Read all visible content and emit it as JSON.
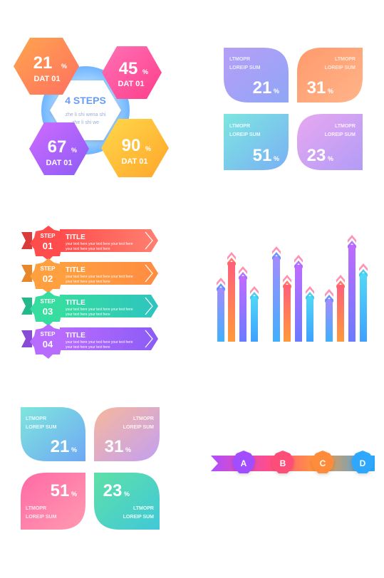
{
  "hex_steps": {
    "center_title": "4 STEPS",
    "center_line1": "zhe li shi wena shi",
    "center_line2": "zhe li shi we",
    "items": [
      {
        "value": "21",
        "unit": "%",
        "label": "DAT 01",
        "color_from": "#ff9a4a",
        "color_to": "#ff6f61"
      },
      {
        "value": "45",
        "unit": "%",
        "label": "DAT 01",
        "color_from": "#ff5fa8",
        "color_to": "#ff3d8b"
      },
      {
        "value": "67",
        "unit": "%",
        "label": "DAT 01",
        "color_from": "#c05cff",
        "color_to": "#8b5cf6"
      },
      {
        "value": "90",
        "unit": "%",
        "label": "DAT 01",
        "color_from": "#ffd24a",
        "color_to": "#ffa62b"
      }
    ]
  },
  "petals_top": {
    "items": [
      {
        "line1": "LTMOPR",
        "line2": "LOREIP SUM",
        "value": "21",
        "unit": "%",
        "color_from": "#b7a2f7",
        "color_to": "#8e9cf5"
      },
      {
        "line1": "LTMOPR",
        "line2": "LOREIP SUM",
        "value": "31",
        "unit": "%",
        "color_from": "#ffb27a",
        "color_to": "#ff8a7a"
      },
      {
        "line1": "LTMOPR",
        "line2": "LOREIP SUM",
        "value": "51",
        "unit": "%",
        "color_from": "#7de0e6",
        "color_to": "#6fb8f0"
      },
      {
        "line1": "LTMOPR",
        "line2": "LOREIP SUM",
        "value": "23",
        "unit": "%",
        "color_from": "#e0a8f0",
        "color_to": "#b79bf5"
      }
    ]
  },
  "step_banners": {
    "items": [
      {
        "step": "STEP",
        "num": "01",
        "title": "TITLE",
        "text1": "your text here your text here your text here",
        "text2": "your text here your text here",
        "color_from": "#ff4d4d",
        "color_to": "#ff7a6b"
      },
      {
        "step": "STEP",
        "num": "02",
        "title": "TITLE",
        "text1": "your text here your text here your text here",
        "text2": "your text here your text here",
        "color_from": "#ffa64d",
        "color_to": "#ff8c42"
      },
      {
        "step": "STEP",
        "num": "03",
        "title": "TITLE",
        "text1": "your text here your text here your text here",
        "text2": "your text here your text here",
        "color_from": "#3fd9a8",
        "color_to": "#2ec4b6"
      },
      {
        "step": "STEP",
        "num": "04",
        "title": "TITLE",
        "text1": "your text here your text here your text here",
        "text2": "your text here your text here",
        "color_from": "#b06bff",
        "color_to": "#8b5cf6"
      }
    ]
  },
  "arrow_bars": {
    "colors": [
      "#5b8cff",
      "#ff6b5b",
      "#a66bff",
      "#3fc7f0"
    ],
    "bars": [
      {
        "level": 0.38,
        "color": 0
      },
      {
        "level": 0.56,
        "color": 1
      },
      {
        "level": 0.46,
        "color": 2
      },
      {
        "level": 0.32,
        "color": 3
      },
      {
        "level": 0.6,
        "color": 0
      },
      {
        "level": 0.4,
        "color": 1
      },
      {
        "level": 0.54,
        "color": 2
      },
      {
        "level": 0.32,
        "color": 3
      },
      {
        "level": 0.3,
        "color": 0
      },
      {
        "level": 0.4,
        "color": 1
      },
      {
        "level": 0.68,
        "color": 2
      },
      {
        "level": 0.48,
        "color": 3
      }
    ]
  },
  "petals_bottom": {
    "items": [
      {
        "line1": "LTMOPR",
        "line2": "LOREIP SUM",
        "value": "21",
        "unit": "%",
        "color_from": "#7ee0e0",
        "color_to": "#6fb0f0"
      },
      {
        "line1": "LTMOPR",
        "line2": "LOREIP SUM",
        "value": "31",
        "unit": "%",
        "color_from": "#f5b0a0",
        "color_to": "#c9a3f0"
      },
      {
        "line1": "LTMOPR",
        "line2": "LOREIP SUM",
        "value": "51",
        "unit": "%",
        "color_from": "#ff6fa8",
        "color_to": "#ff8fb0"
      },
      {
        "line1": "LTMOPR",
        "line2": "LOREIP SUM",
        "value": "23",
        "unit": "%",
        "color_from": "#6fe0b0",
        "color_to": "#3fd0c8"
      }
    ]
  },
  "abcd_ribbon": {
    "items": [
      {
        "letter": "A",
        "color": "#a24dff"
      },
      {
        "letter": "B",
        "color": "#ff4d7a"
      },
      {
        "letter": "C",
        "color": "#ff8c3a"
      },
      {
        "letter": "D",
        "color": "#2ea8ff"
      }
    ]
  }
}
